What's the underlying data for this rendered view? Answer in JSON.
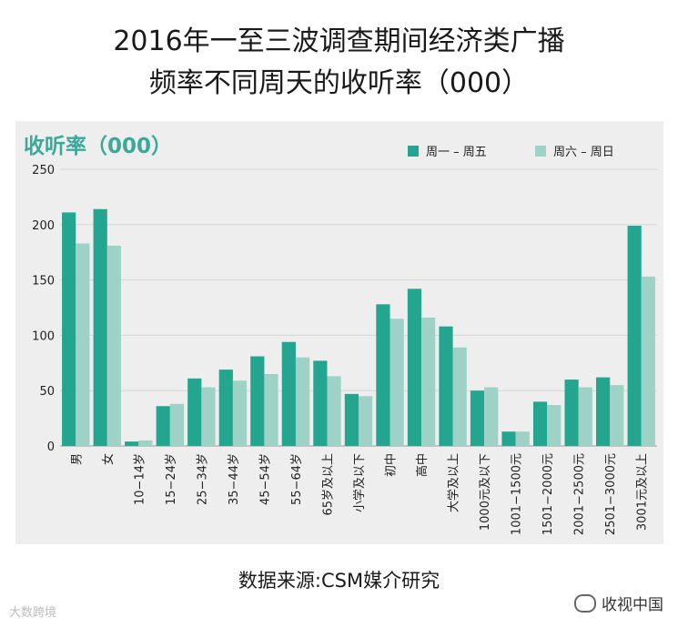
{
  "title_line1": "2016年一至三波调查期间经济类广播",
  "title_line2": "频率不同周天的收听率（000）",
  "source": "数据来源:CSM媒介研究",
  "watermark_left": "大数跨境",
  "watermark_right": "收视中国",
  "colors": {
    "weekday": "#23a58f",
    "weekend": "#9fd2c7",
    "axis_title": "#3ba99a"
  },
  "chart_data": {
    "type": "bar",
    "ylabel": "收听率（000）",
    "ylim": [
      0,
      250
    ],
    "yticks": [
      0,
      50,
      100,
      150,
      200,
      250
    ],
    "grid": true,
    "legend_position": "top-right",
    "categories": [
      "男",
      "女",
      "10−14岁",
      "15−24岁",
      "25−34岁",
      "35−44岁",
      "45−54岁",
      "55−64岁",
      "65岁及以上",
      "小学及以下",
      "初中",
      "高中",
      "大学及以上",
      "1000元及以下",
      "1001−1500元",
      "1501−2000元",
      "2001−2500元",
      "2501−3000元",
      "3001元及以上"
    ],
    "series": [
      {
        "name": "周一 – 周五",
        "values": [
          211,
          214,
          4,
          36,
          61,
          69,
          81,
          94,
          77,
          47,
          128,
          142,
          108,
          50,
          13,
          40,
          60,
          62,
          199
        ]
      },
      {
        "name": "周六 – 周日",
        "values": [
          183,
          181,
          5,
          38,
          53,
          59,
          65,
          80,
          63,
          45,
          115,
          116,
          89,
          53,
          13,
          37,
          53,
          55,
          153
        ]
      }
    ]
  }
}
